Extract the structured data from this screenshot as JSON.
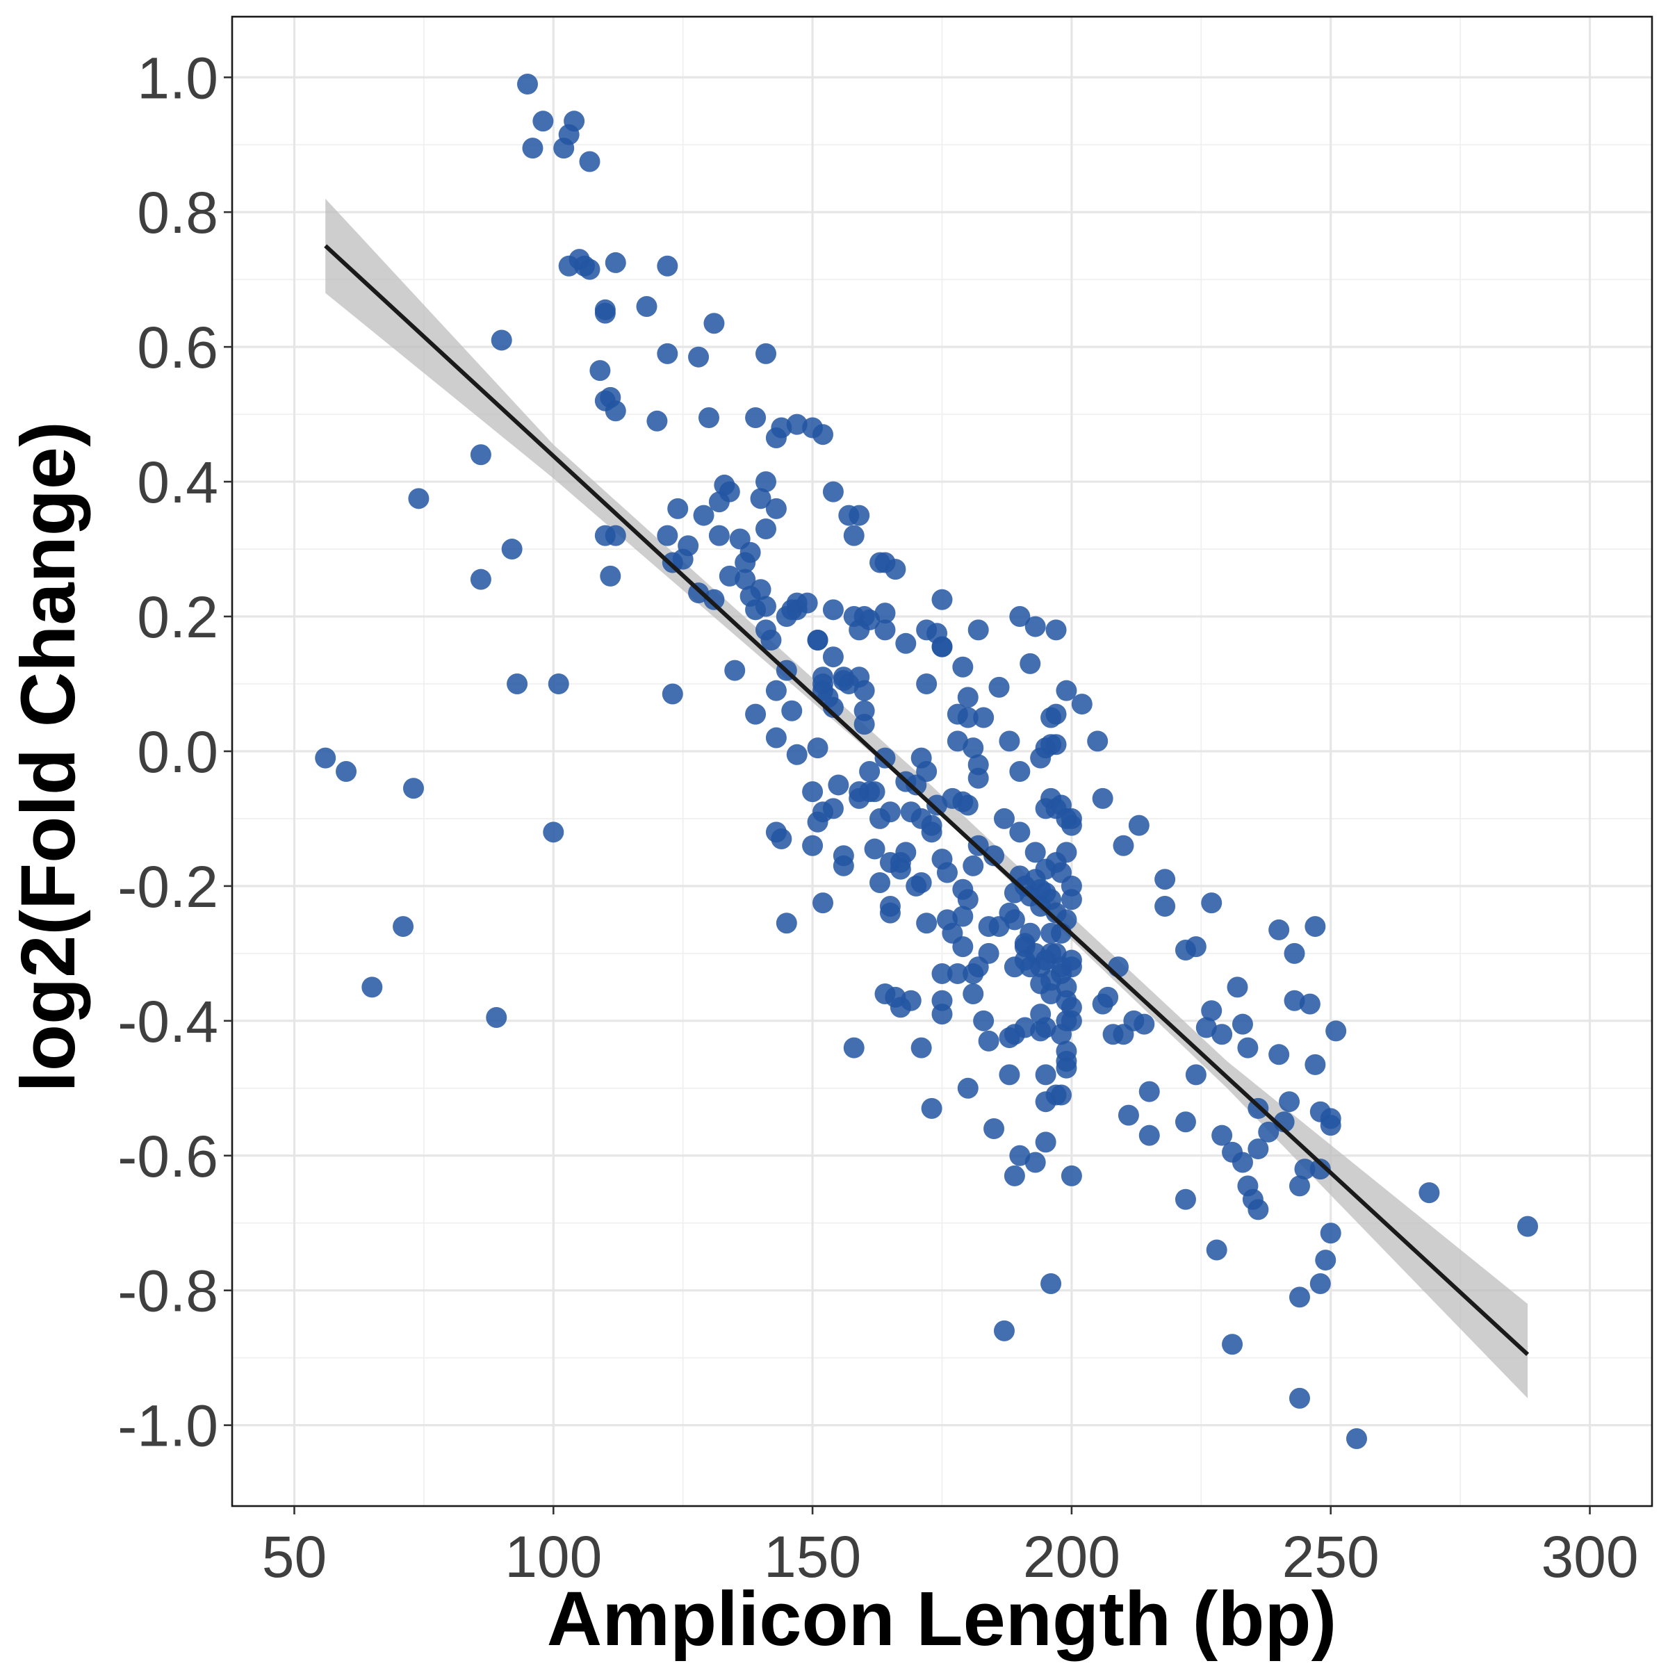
{
  "chart_data": {
    "type": "scatter",
    "title": "",
    "xlabel": "Amplicon Length (bp)",
    "ylabel": "log2(Fold Change)",
    "xlim": [
      38,
      312
    ],
    "ylim": [
      -1.12,
      1.09
    ],
    "x_ticks": [
      50,
      100,
      150,
      200,
      250,
      300
    ],
    "y_ticks": [
      1.0,
      0.8,
      0.6,
      0.4,
      0.2,
      0.0,
      -0.2,
      -0.4,
      -0.6,
      -0.8,
      -1.0
    ],
    "x_tick_labels": [
      "50",
      "100",
      "150",
      "200",
      "250",
      "300"
    ],
    "y_tick_labels": [
      "1.0",
      "0.8",
      "0.6",
      "0.4",
      "0.2",
      "0.0",
      "-0.2",
      "-0.4",
      "-0.6",
      "-0.8",
      "-1.0"
    ],
    "grid": true,
    "legend": "none",
    "point_color": "#2255a2",
    "trend_line_color": "#1a1a1a",
    "confidence_band_color": "#bdbdbd",
    "trend_line": {
      "method": "linear",
      "x_start": 56,
      "y_start": 0.75,
      "x_end": 288,
      "y_end": -0.895,
      "band": [
        {
          "x": 56,
          "lower": 0.68,
          "upper": 0.82
        },
        {
          "x": 100,
          "lower": 0.405,
          "upper": 0.455
        },
        {
          "x": 170,
          "lower": -0.06,
          "upper": -0.03
        },
        {
          "x": 230,
          "lower": -0.5,
          "upper": -0.46
        },
        {
          "x": 288,
          "lower": -0.96,
          "upper": -0.82
        }
      ]
    },
    "points": [
      [
        56,
        -0.01
      ],
      [
        60,
        -0.03
      ],
      [
        65,
        -0.35
      ],
      [
        71,
        -0.26
      ],
      [
        73,
        -0.055
      ],
      [
        74,
        0.375
      ],
      [
        86,
        0.44
      ],
      [
        86,
        0.255
      ],
      [
        89,
        -0.395
      ],
      [
        90,
        0.61
      ],
      [
        92,
        0.3
      ],
      [
        93,
        0.1
      ],
      [
        95,
        0.99
      ],
      [
        96,
        0.895
      ],
      [
        98,
        0.935
      ],
      [
        100,
        -0.12
      ],
      [
        101,
        0.1
      ],
      [
        102,
        0.895
      ],
      [
        103,
        0.915
      ],
      [
        103,
        0.72
      ],
      [
        104,
        0.935
      ],
      [
        105,
        0.73
      ],
      [
        106,
        0.72
      ],
      [
        107,
        0.875
      ],
      [
        107,
        0.715
      ],
      [
        109,
        0.565
      ],
      [
        110,
        0.655
      ],
      [
        110,
        0.65
      ],
      [
        110,
        0.52
      ],
      [
        110,
        0.32
      ],
      [
        111,
        0.525
      ],
      [
        111,
        0.26
      ],
      [
        112,
        0.725
      ],
      [
        112,
        0.505
      ],
      [
        112,
        0.32
      ],
      [
        118,
        0.66
      ],
      [
        120,
        0.49
      ],
      [
        122,
        0.72
      ],
      [
        122,
        0.59
      ],
      [
        122,
        0.32
      ],
      [
        123,
        0.085
      ],
      [
        123,
        0.28
      ],
      [
        124,
        0.36
      ],
      [
        125,
        0.285
      ],
      [
        126,
        0.305
      ],
      [
        128,
        0.585
      ],
      [
        128,
        0.235
      ],
      [
        129,
        0.35
      ],
      [
        130,
        0.495
      ],
      [
        131,
        0.635
      ],
      [
        131,
        0.225
      ],
      [
        132,
        0.37
      ],
      [
        132,
        0.32
      ],
      [
        133,
        0.395
      ],
      [
        134,
        0.385
      ],
      [
        134,
        0.26
      ],
      [
        135,
        0.12
      ],
      [
        136,
        0.315
      ],
      [
        137,
        0.28
      ],
      [
        137,
        0.255
      ],
      [
        138,
        0.295
      ],
      [
        138,
        0.23
      ],
      [
        139,
        0.495
      ],
      [
        139,
        0.21
      ],
      [
        139,
        0.055
      ],
      [
        140,
        0.375
      ],
      [
        140,
        0.24
      ],
      [
        141,
        0.59
      ],
      [
        141,
        0.4
      ],
      [
        141,
        0.33
      ],
      [
        141,
        0.215
      ],
      [
        141,
        0.18
      ],
      [
        142,
        0.165
      ],
      [
        143,
        0.465
      ],
      [
        143,
        0.36
      ],
      [
        143,
        0.09
      ],
      [
        143,
        0.02
      ],
      [
        143,
        -0.12
      ],
      [
        144,
        0.48
      ],
      [
        144,
        -0.13
      ],
      [
        145,
        0.2
      ],
      [
        145,
        0.12
      ],
      [
        145,
        -0.255
      ],
      [
        146,
        0.06
      ],
      [
        146,
        0.21
      ],
      [
        147,
        0.485
      ],
      [
        147,
        0.22
      ],
      [
        147,
        0.21
      ],
      [
        147,
        -0.005
      ],
      [
        149,
        0.22
      ],
      [
        150,
        0.48
      ],
      [
        150,
        -0.06
      ],
      [
        150,
        -0.14
      ],
      [
        151,
        0.165
      ],
      [
        151,
        0.165
      ],
      [
        151,
        0.005
      ],
      [
        151,
        -0.105
      ],
      [
        152,
        0.47
      ],
      [
        152,
        0.11
      ],
      [
        152,
        0.1
      ],
      [
        152,
        0.09
      ],
      [
        152,
        -0.225
      ],
      [
        152,
        -0.09
      ],
      [
        153,
        0.08
      ],
      [
        154,
        0.385
      ],
      [
        154,
        0.21
      ],
      [
        154,
        0.14
      ],
      [
        154,
        0.065
      ],
      [
        154,
        -0.085
      ],
      [
        155,
        -0.05
      ],
      [
        156,
        0.11
      ],
      [
        156,
        0.105
      ],
      [
        156,
        -0.155
      ],
      [
        156,
        -0.17
      ],
      [
        157,
        0.35
      ],
      [
        157,
        0.1
      ],
      [
        158,
        0.32
      ],
      [
        158,
        0.2
      ],
      [
        158,
        -0.44
      ],
      [
        159,
        0.35
      ],
      [
        159,
        0.18
      ],
      [
        159,
        0.11
      ],
      [
        159,
        -0.06
      ],
      [
        159,
        -0.07
      ],
      [
        160,
        0.2
      ],
      [
        160,
        0.09
      ],
      [
        160,
        0.06
      ],
      [
        160,
        0.04
      ],
      [
        161,
        0.195
      ],
      [
        161,
        -0.03
      ],
      [
        161,
        -0.06
      ],
      [
        162,
        -0.145
      ],
      [
        162,
        -0.06
      ],
      [
        163,
        0.28
      ],
      [
        163,
        -0.195
      ],
      [
        163,
        -0.1
      ],
      [
        164,
        0.28
      ],
      [
        164,
        0.205
      ],
      [
        164,
        0.18
      ],
      [
        164,
        -0.01
      ],
      [
        164,
        -0.36
      ],
      [
        165,
        -0.165
      ],
      [
        165,
        -0.23
      ],
      [
        165,
        -0.24
      ],
      [
        165,
        -0.09
      ],
      [
        166,
        0.27
      ],
      [
        166,
        -0.365
      ],
      [
        167,
        -0.38
      ],
      [
        167,
        -0.165
      ],
      [
        167,
        -0.175
      ],
      [
        168,
        0.16
      ],
      [
        168,
        -0.045
      ],
      [
        168,
        -0.15
      ],
      [
        169,
        -0.37
      ],
      [
        169,
        -0.09
      ],
      [
        170,
        -0.2
      ],
      [
        170,
        -0.05
      ],
      [
        171,
        -0.195
      ],
      [
        171,
        -0.1
      ],
      [
        171,
        -0.44
      ],
      [
        171,
        -0.01
      ],
      [
        172,
        0.18
      ],
      [
        172,
        0.1
      ],
      [
        172,
        -0.03
      ],
      [
        172,
        -0.255
      ],
      [
        173,
        -0.53
      ],
      [
        173,
        -0.11
      ],
      [
        173,
        -0.12
      ],
      [
        174,
        0.175
      ],
      [
        174,
        -0.08
      ],
      [
        175,
        0.225
      ],
      [
        175,
        0.155
      ],
      [
        175,
        0.155
      ],
      [
        175,
        -0.16
      ],
      [
        175,
        -0.33
      ],
      [
        175,
        -0.37
      ],
      [
        175,
        -0.39
      ],
      [
        176,
        -0.25
      ],
      [
        176,
        -0.18
      ],
      [
        177,
        -0.07
      ],
      [
        177,
        -0.27
      ],
      [
        178,
        0.055
      ],
      [
        178,
        0.015
      ],
      [
        178,
        -0.33
      ],
      [
        179,
        0.125
      ],
      [
        179,
        -0.075
      ],
      [
        179,
        -0.205
      ],
      [
        179,
        -0.29
      ],
      [
        179,
        -0.245
      ],
      [
        180,
        0.08
      ],
      [
        180,
        0.05
      ],
      [
        180,
        -0.08
      ],
      [
        180,
        -0.22
      ],
      [
        180,
        -0.5
      ],
      [
        181,
        0.005
      ],
      [
        181,
        -0.17
      ],
      [
        181,
        -0.33
      ],
      [
        181,
        -0.36
      ],
      [
        182,
        0.18
      ],
      [
        182,
        -0.02
      ],
      [
        182,
        -0.04
      ],
      [
        182,
        -0.32
      ],
      [
        182,
        -0.14
      ],
      [
        183,
        0.05
      ],
      [
        183,
        -0.4
      ],
      [
        184,
        -0.26
      ],
      [
        184,
        -0.3
      ],
      [
        184,
        -0.43
      ],
      [
        185,
        -0.56
      ],
      [
        185,
        -0.155
      ],
      [
        186,
        0.095
      ],
      [
        186,
        -0.26
      ],
      [
        187,
        -0.1
      ],
      [
        187,
        -0.86
      ],
      [
        188,
        0.015
      ],
      [
        188,
        -0.24
      ],
      [
        188,
        -0.425
      ],
      [
        188,
        -0.48
      ],
      [
        189,
        -0.32
      ],
      [
        189,
        -0.63
      ],
      [
        189,
        -0.21
      ],
      [
        189,
        -0.25
      ],
      [
        189,
        -0.42
      ],
      [
        190,
        0.2
      ],
      [
        190,
        -0.03
      ],
      [
        190,
        -0.12
      ],
      [
        190,
        -0.6
      ],
      [
        190,
        -0.185
      ],
      [
        191,
        -0.285
      ],
      [
        191,
        -0.2
      ],
      [
        191,
        -0.31
      ],
      [
        191,
        -0.41
      ],
      [
        191,
        -0.29
      ],
      [
        192,
        0.13
      ],
      [
        192,
        -0.32
      ],
      [
        192,
        -0.27
      ],
      [
        192,
        -0.215
      ],
      [
        193,
        0.185
      ],
      [
        193,
        -0.15
      ],
      [
        193,
        -0.61
      ],
      [
        193,
        -0.19
      ],
      [
        193,
        -0.3
      ],
      [
        194,
        -0.01
      ],
      [
        194,
        -0.205
      ],
      [
        194,
        -0.23
      ],
      [
        194,
        -0.32
      ],
      [
        194,
        -0.345
      ],
      [
        194,
        -0.39
      ],
      [
        194,
        -0.415
      ],
      [
        195,
        0.005
      ],
      [
        195,
        -0.085
      ],
      [
        195,
        -0.175
      ],
      [
        195,
        -0.21
      ],
      [
        195,
        -0.31
      ],
      [
        195,
        -0.41
      ],
      [
        195,
        -0.48
      ],
      [
        195,
        -0.52
      ],
      [
        195,
        -0.58
      ],
      [
        196,
        0.05
      ],
      [
        196,
        0.01
      ],
      [
        196,
        -0.07
      ],
      [
        196,
        -0.22
      ],
      [
        196,
        -0.27
      ],
      [
        196,
        -0.3
      ],
      [
        196,
        -0.34
      ],
      [
        196,
        -0.36
      ],
      [
        196,
        -0.79
      ],
      [
        197,
        0.18
      ],
      [
        197,
        0.055
      ],
      [
        197,
        0.01
      ],
      [
        197,
        -0.085
      ],
      [
        197,
        -0.165
      ],
      [
        197,
        -0.24
      ],
      [
        197,
        -0.3
      ],
      [
        197,
        -0.51
      ],
      [
        198,
        -0.08
      ],
      [
        198,
        -0.18
      ],
      [
        198,
        -0.27
      ],
      [
        198,
        -0.32
      ],
      [
        198,
        -0.33
      ],
      [
        198,
        -0.42
      ],
      [
        198,
        -0.51
      ],
      [
        199,
        0.09
      ],
      [
        199,
        -0.1
      ],
      [
        199,
        -0.15
      ],
      [
        199,
        -0.25
      ],
      [
        199,
        -0.35
      ],
      [
        199,
        -0.37
      ],
      [
        199,
        -0.4
      ],
      [
        199,
        -0.445
      ],
      [
        199,
        -0.47
      ],
      [
        199,
        -0.46
      ],
      [
        200,
        -0.1
      ],
      [
        200,
        -0.11
      ],
      [
        200,
        -0.2
      ],
      [
        200,
        -0.22
      ],
      [
        200,
        -0.31
      ],
      [
        200,
        -0.32
      ],
      [
        200,
        -0.38
      ],
      [
        200,
        -0.4
      ],
      [
        200,
        -0.63
      ],
      [
        202,
        0.07
      ],
      [
        205,
        0.015
      ],
      [
        206,
        -0.07
      ],
      [
        206,
        -0.375
      ],
      [
        207,
        -0.365
      ],
      [
        208,
        -0.42
      ],
      [
        209,
        -0.32
      ],
      [
        210,
        -0.14
      ],
      [
        210,
        -0.42
      ],
      [
        211,
        -0.54
      ],
      [
        212,
        -0.4
      ],
      [
        213,
        -0.11
      ],
      [
        214,
        -0.405
      ],
      [
        215,
        -0.505
      ],
      [
        215,
        -0.57
      ],
      [
        218,
        -0.19
      ],
      [
        218,
        -0.23
      ],
      [
        222,
        -0.295
      ],
      [
        222,
        -0.55
      ],
      [
        222,
        -0.665
      ],
      [
        224,
        -0.29
      ],
      [
        224,
        -0.48
      ],
      [
        226,
        -0.41
      ],
      [
        227,
        -0.225
      ],
      [
        227,
        -0.385
      ],
      [
        228,
        -0.74
      ],
      [
        229,
        -0.57
      ],
      [
        229,
        -0.42
      ],
      [
        231,
        -0.595
      ],
      [
        231,
        -0.88
      ],
      [
        232,
        -0.35
      ],
      [
        233,
        -0.61
      ],
      [
        233,
        -0.405
      ],
      [
        234,
        -0.44
      ],
      [
        234,
        -0.645
      ],
      [
        235,
        -0.665
      ],
      [
        236,
        -0.68
      ],
      [
        236,
        -0.53
      ],
      [
        236,
        -0.59
      ],
      [
        238,
        -0.565
      ],
      [
        240,
        -0.265
      ],
      [
        240,
        -0.45
      ],
      [
        241,
        -0.55
      ],
      [
        242,
        -0.52
      ],
      [
        243,
        -0.3
      ],
      [
        243,
        -0.37
      ],
      [
        244,
        -0.645
      ],
      [
        244,
        -0.81
      ],
      [
        244,
        -0.96
      ],
      [
        245,
        -0.62
      ],
      [
        246,
        -0.375
      ],
      [
        247,
        -0.26
      ],
      [
        247,
        -0.465
      ],
      [
        248,
        -0.535
      ],
      [
        248,
        -0.62
      ],
      [
        248,
        -0.79
      ],
      [
        249,
        -0.755
      ],
      [
        250,
        -0.545
      ],
      [
        250,
        -0.555
      ],
      [
        250,
        -0.715
      ],
      [
        251,
        -0.415
      ],
      [
        255,
        -1.02
      ],
      [
        269,
        -0.655
      ],
      [
        288,
        -0.705
      ]
    ]
  }
}
